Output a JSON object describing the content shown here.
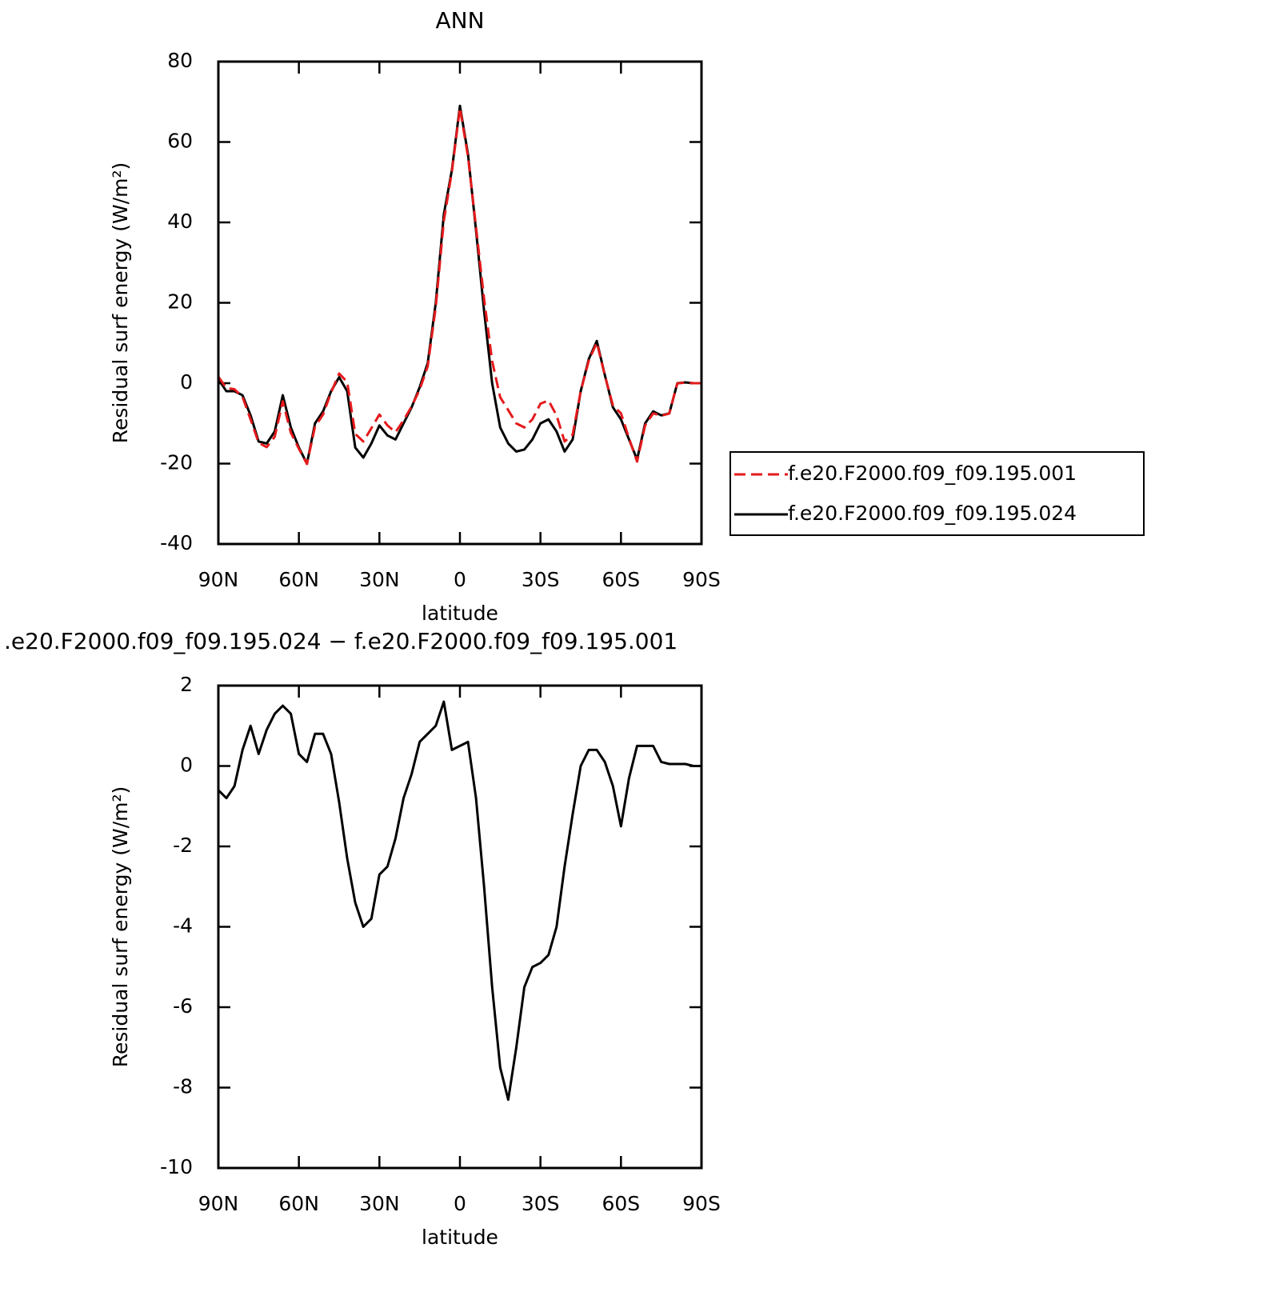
{
  "chart_data": [
    {
      "type": "line",
      "title": "ANN",
      "ylabel": "Residual surf energy (W/m²)",
      "xlabel": "latitude",
      "x": [
        90,
        87,
        84,
        81,
        78,
        75,
        72,
        69,
        66,
        63,
        60,
        57,
        54,
        51,
        48,
        45,
        42,
        39,
        36,
        33,
        30,
        27,
        24,
        21,
        18,
        15,
        12,
        9,
        6,
        3,
        0,
        -3,
        -6,
        -9,
        -12,
        -15,
        -18,
        -21,
        -24,
        -27,
        -30,
        -33,
        -36,
        -39,
        -42,
        -45,
        -48,
        -51,
        -54,
        -57,
        -60,
        -63,
        -66,
        -69,
        -72,
        -75,
        -78,
        -81,
        -84,
        -87,
        -90
      ],
      "series": [
        {
          "name": "f.e20.F2000.f09_f09.195.001",
          "color": "#e41a1c",
          "dashed": true,
          "values": [
            1.6,
            -1.2,
            -1.5,
            -3.4,
            -9,
            -14.8,
            -15.9,
            -13.3,
            -4.5,
            -12.3,
            -16.3,
            -20.1,
            -10.8,
            -7.8,
            -2.3,
            2.4,
            0.3,
            -12.6,
            -14.5,
            -11.2,
            -7.8,
            -10.5,
            -12.2,
            -9.2,
            -5.8,
            -1.6,
            4.2,
            19,
            40.4,
            52.6,
            68.5,
            56.4,
            38.8,
            21,
            5.5,
            -3.5,
            -6.7,
            -10,
            -11,
            -9,
            -5.1,
            -4.3,
            -8,
            -14.5,
            -12.8,
            -2,
            5.6,
            10.1,
            1.9,
            -5.5,
            -7.5,
            -13.7,
            -19.5,
            -10.5,
            -7.5,
            -8.1,
            -7.55,
            -0.05,
            0.15,
            0,
            0
          ]
        },
        {
          "name": "f.e20.F2000.f09_f09.195.024",
          "color": "#000000",
          "dashed": false,
          "values": [
            1,
            -2,
            -2,
            -3,
            -8,
            -14.5,
            -15,
            -12,
            -3,
            -11,
            -16,
            -20,
            -10,
            -7,
            -2,
            1.5,
            -2,
            -16,
            -18.5,
            -15,
            -10.5,
            -13,
            -14,
            -10,
            -6,
            -1,
            5,
            20,
            42,
            53,
            69,
            57,
            38,
            18,
            0,
            -11,
            -15,
            -17,
            -16.5,
            -14,
            -10,
            -9,
            -12,
            -17,
            -14,
            -2,
            6,
            10.5,
            2,
            -6,
            -9,
            -14,
            -19,
            -10,
            -7,
            -8,
            -7.5,
            0,
            0.2,
            0,
            0
          ]
        }
      ],
      "xlim": [
        90,
        -90
      ],
      "xticks": [
        {
          "value": 90,
          "label": "90N"
        },
        {
          "value": 60,
          "label": "60N"
        },
        {
          "value": 30,
          "label": "30N"
        },
        0,
        {
          "value": -30,
          "label": "30S"
        },
        {
          "value": -60,
          "label": "60S"
        },
        {
          "value": -90,
          "label": "90S"
        }
      ],
      "ylim": [
        -40,
        80
      ],
      "yticks": [
        -40,
        -20,
        0,
        20,
        40,
        60,
        80
      ],
      "legend": "outside right"
    },
    {
      "type": "line",
      "title": ".e20.F2000.f09_f09.195.024 − f.e20.F2000.f09_f09.195.001",
      "ylabel": "Residual surf energy (W/m²)",
      "xlabel": "latitude",
      "x": [
        90,
        87,
        84,
        81,
        78,
        75,
        72,
        69,
        66,
        63,
        60,
        57,
        54,
        51,
        48,
        45,
        42,
        39,
        36,
        33,
        30,
        27,
        24,
        21,
        18,
        15,
        12,
        9,
        6,
        3,
        0,
        -3,
        -6,
        -9,
        -12,
        -15,
        -18,
        -21,
        -24,
        -27,
        -30,
        -33,
        -36,
        -39,
        -42,
        -45,
        -48,
        -51,
        -54,
        -57,
        -60,
        -63,
        -66,
        -69,
        -72,
        -75,
        -78,
        -81,
        -84,
        -87,
        -90
      ],
      "series": [
        {
          "color": "#000000",
          "dashed": false,
          "values": [
            -0.6,
            -0.8,
            -0.5,
            0.4,
            1.0,
            0.3,
            0.9,
            1.3,
            1.5,
            1.3,
            0.3,
            0.1,
            0.8,
            0.8,
            0.3,
            -0.9,
            -2.3,
            -3.4,
            -4.0,
            -3.8,
            -2.7,
            -2.5,
            -1.8,
            -0.8,
            -0.2,
            0.6,
            0.8,
            1.0,
            1.6,
            0.4,
            0.5,
            0.6,
            -0.8,
            -3.0,
            -5.5,
            -7.5,
            -8.3,
            -7.0,
            -5.5,
            -5.0,
            -4.9,
            -4.7,
            -4.0,
            -2.5,
            -1.2,
            0.0,
            0.4,
            0.4,
            0.1,
            -0.5,
            -1.5,
            -0.3,
            0.5,
            0.5,
            0.5,
            0.1,
            0.05,
            0.05,
            0.05,
            0,
            0
          ]
        }
      ],
      "xlim": [
        90,
        -90
      ],
      "xticks": [
        {
          "value": 90,
          "label": "90N"
        },
        {
          "value": 60,
          "label": "60N"
        },
        {
          "value": 30,
          "label": "30N"
        },
        0,
        {
          "value": -30,
          "label": "30S"
        },
        {
          "value": -60,
          "label": "60S"
        },
        {
          "value": -90,
          "label": "90S"
        }
      ],
      "ylim": [
        -10,
        2
      ],
      "yticks": [
        -10,
        -8,
        -6,
        -4,
        -2,
        0,
        2
      ]
    }
  ]
}
